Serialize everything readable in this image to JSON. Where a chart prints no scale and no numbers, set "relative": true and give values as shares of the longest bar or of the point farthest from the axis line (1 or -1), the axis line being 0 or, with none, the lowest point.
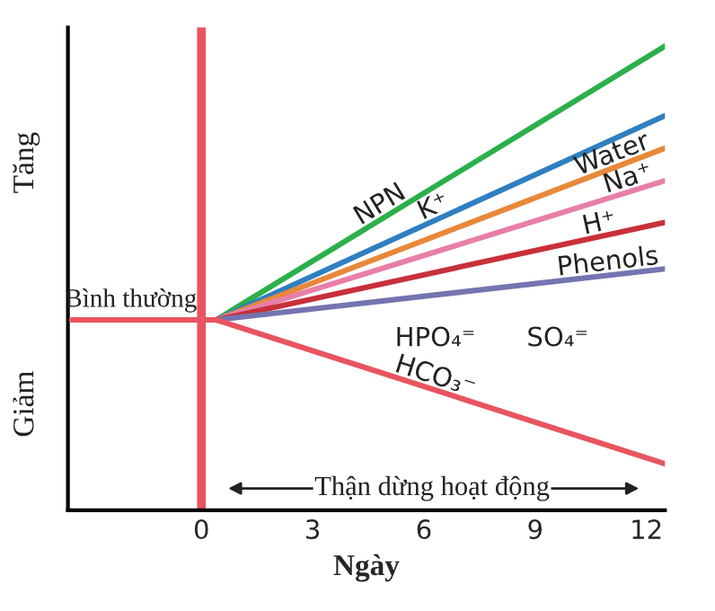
{
  "chart_data": {
    "type": "line",
    "relative": true,
    "xlabel": "Ngày",
    "xlim": [
      -3.6,
      12.5
    ],
    "xticks": [
      0,
      3,
      6,
      9,
      12
    ],
    "tick_labels": "x",
    "grid": false,
    "legend": false,
    "marker": "none",
    "line_style": "solid",
    "series": [
      {
        "name": "NPN",
        "color": "#2bb04a",
        "x": [
          0.4,
          12.5
        ],
        "values": [
          0.41,
          1.0
        ]
      },
      {
        "name": "K⁺",
        "color": "#2f7fc1",
        "x": [
          0.4,
          12.5
        ],
        "values": [
          0.41,
          0.85
        ]
      },
      {
        "name": "Water",
        "color": "#e8883a",
        "x": [
          0.4,
          12.5
        ],
        "values": [
          0.41,
          0.78
        ]
      },
      {
        "name": "Na⁺",
        "color": "#e87fa8",
        "x": [
          0.4,
          12.5
        ],
        "values": [
          0.41,
          0.71
        ]
      },
      {
        "name": "H⁺",
        "color": "#c8303a",
        "x": [
          0.4,
          12.5
        ],
        "values": [
          0.41,
          0.62
        ]
      },
      {
        "name": "Phenols",
        "color": "#7474b0",
        "x": [
          0.4,
          12.5
        ],
        "values": [
          0.41,
          0.52
        ]
      },
      {
        "name": "HCO₃⁻",
        "color": "#e85560",
        "x": [
          -3.5,
          0.4,
          12.5
        ],
        "values": [
          0.41,
          0.41,
          0.1
        ]
      }
    ],
    "ref_lines": [
      {
        "axis": "x",
        "value": 0,
        "color": "#e85560"
      }
    ],
    "annotations": [
      "Tăng",
      "Giảm",
      "Thận dừng hoạt động",
      {
        "text": "Bình thường",
        "x": -1.9,
        "y": 0.41
      },
      "HPO₄⁼",
      "SO₄⁼"
    ]
  }
}
